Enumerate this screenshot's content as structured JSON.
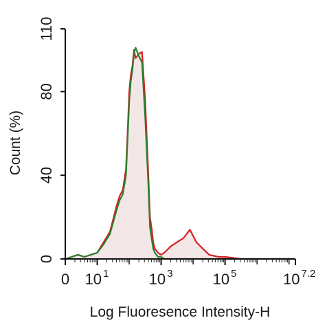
{
  "chart_data": {
    "type": "area",
    "xlabel": "Log Fluoresence Intensity-H",
    "ylabel": "Count  (%)",
    "xscale": "log (biexponential)",
    "xlim": [
      0,
      7.2
    ],
    "ylim": [
      0,
      110
    ],
    "grid": false,
    "legend": "none",
    "x_ticks": [
      {
        "value": 0,
        "label_base": "0",
        "label_exp": ""
      },
      {
        "value": 1,
        "label_base": "10",
        "label_exp": "1"
      },
      {
        "value": 3,
        "label_base": "10",
        "label_exp": "3"
      },
      {
        "value": 5,
        "label_base": "10",
        "label_exp": "5"
      },
      {
        "value": 7.2,
        "label_base": "10",
        "label_exp": "7.2"
      }
    ],
    "y_ticks": [
      0,
      40,
      80,
      110
    ],
    "series": [
      {
        "color": "#d42020",
        "fill": "#f3e6e6",
        "x": [
          0,
          0.2,
          0.4,
          0.6,
          0.8,
          1.0,
          1.2,
          1.4,
          1.6,
          1.7,
          1.8,
          1.9,
          1.95,
          2.0,
          2.05,
          2.1,
          2.15,
          2.2,
          2.3,
          2.4,
          2.5,
          2.6,
          2.65,
          2.7,
          2.75,
          2.8,
          2.9,
          3.0,
          3.1,
          3.3,
          3.5,
          3.7,
          3.9,
          4.0,
          4.1,
          4.3,
          4.5,
          4.8,
          5.0,
          5.5,
          6.0,
          7.2
        ],
        "y": [
          0,
          1,
          2,
          1,
          2,
          3,
          8,
          13,
          25,
          30,
          33,
          43,
          60,
          80,
          88,
          92,
          100,
          96,
          98,
          99,
          76,
          40,
          20,
          15,
          8,
          5,
          3,
          2,
          3,
          6,
          8,
          10,
          14,
          11,
          8,
          5,
          2,
          1,
          1,
          0,
          0,
          0
        ]
      },
      {
        "color": "#2e7d2e",
        "x": [
          0,
          0.2,
          0.4,
          0.6,
          0.8,
          1.0,
          1.2,
          1.4,
          1.6,
          1.7,
          1.8,
          1.9,
          1.95,
          2.0,
          2.05,
          2.1,
          2.15,
          2.2,
          2.3,
          2.4,
          2.5,
          2.6,
          2.65,
          2.7,
          2.75,
          2.8,
          2.9,
          3.0,
          3.1,
          3.3,
          3.5,
          4.0,
          5.0,
          7.2
        ],
        "y": [
          0,
          1,
          2,
          1,
          2,
          3,
          7,
          12,
          23,
          28,
          31,
          40,
          57,
          75,
          85,
          90,
          98,
          101,
          97,
          94,
          68,
          35,
          15,
          10,
          5,
          3,
          1,
          1,
          0,
          0,
          0,
          0,
          0,
          0
        ]
      }
    ]
  }
}
